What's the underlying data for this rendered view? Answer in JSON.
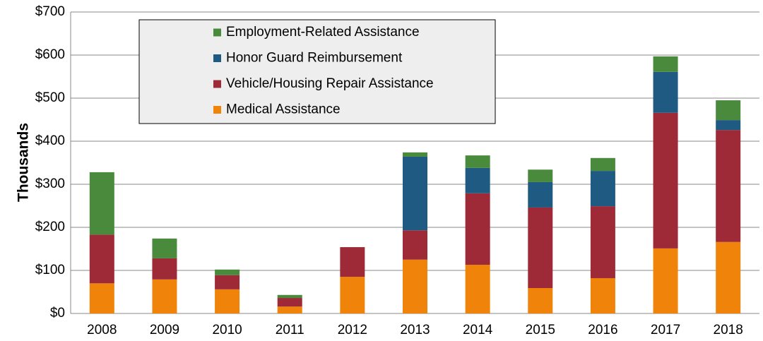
{
  "chart_data": {
    "type": "stacked_bar",
    "y_label": "Thousands",
    "categories": [
      "2008",
      "2009",
      "2010",
      "2011",
      "2012",
      "2013",
      "2014",
      "2015",
      "2016",
      "2017",
      "2018"
    ],
    "series": [
      {
        "name": "Medical Assistance",
        "color": "#f0830a",
        "values": [
          70,
          79,
          56,
          16,
          85,
          125,
          113,
          59,
          82,
          151,
          166
        ]
      },
      {
        "name": "Vehicle/Housing Repair Assistance",
        "color": "#9e2a37",
        "values": [
          113,
          49,
          33,
          20,
          69,
          68,
          166,
          187,
          167,
          315,
          260
        ]
      },
      {
        "name": "Honor Guard Reimbursement",
        "color": "#1f5a82",
        "values": [
          0,
          0,
          0,
          0,
          0,
          171,
          59,
          59,
          82,
          95,
          23
        ]
      },
      {
        "name": "Employment-Related Assistance",
        "color": "#4a8a3c",
        "values": [
          145,
          46,
          13,
          7,
          0,
          10,
          29,
          29,
          30,
          36,
          46
        ]
      }
    ],
    "ylim": [
      0,
      700
    ],
    "yticks": [
      {
        "value": 0,
        "label": "$0"
      },
      {
        "value": 100,
        "label": "$100"
      },
      {
        "value": 200,
        "label": "$200"
      },
      {
        "value": 300,
        "label": "$300"
      },
      {
        "value": 400,
        "label": "$400"
      },
      {
        "value": 500,
        "label": "$500"
      },
      {
        "value": 600,
        "label": "$600"
      },
      {
        "value": 700,
        "label": "$700"
      }
    ],
    "grid": true,
    "legend": "top-left"
  }
}
